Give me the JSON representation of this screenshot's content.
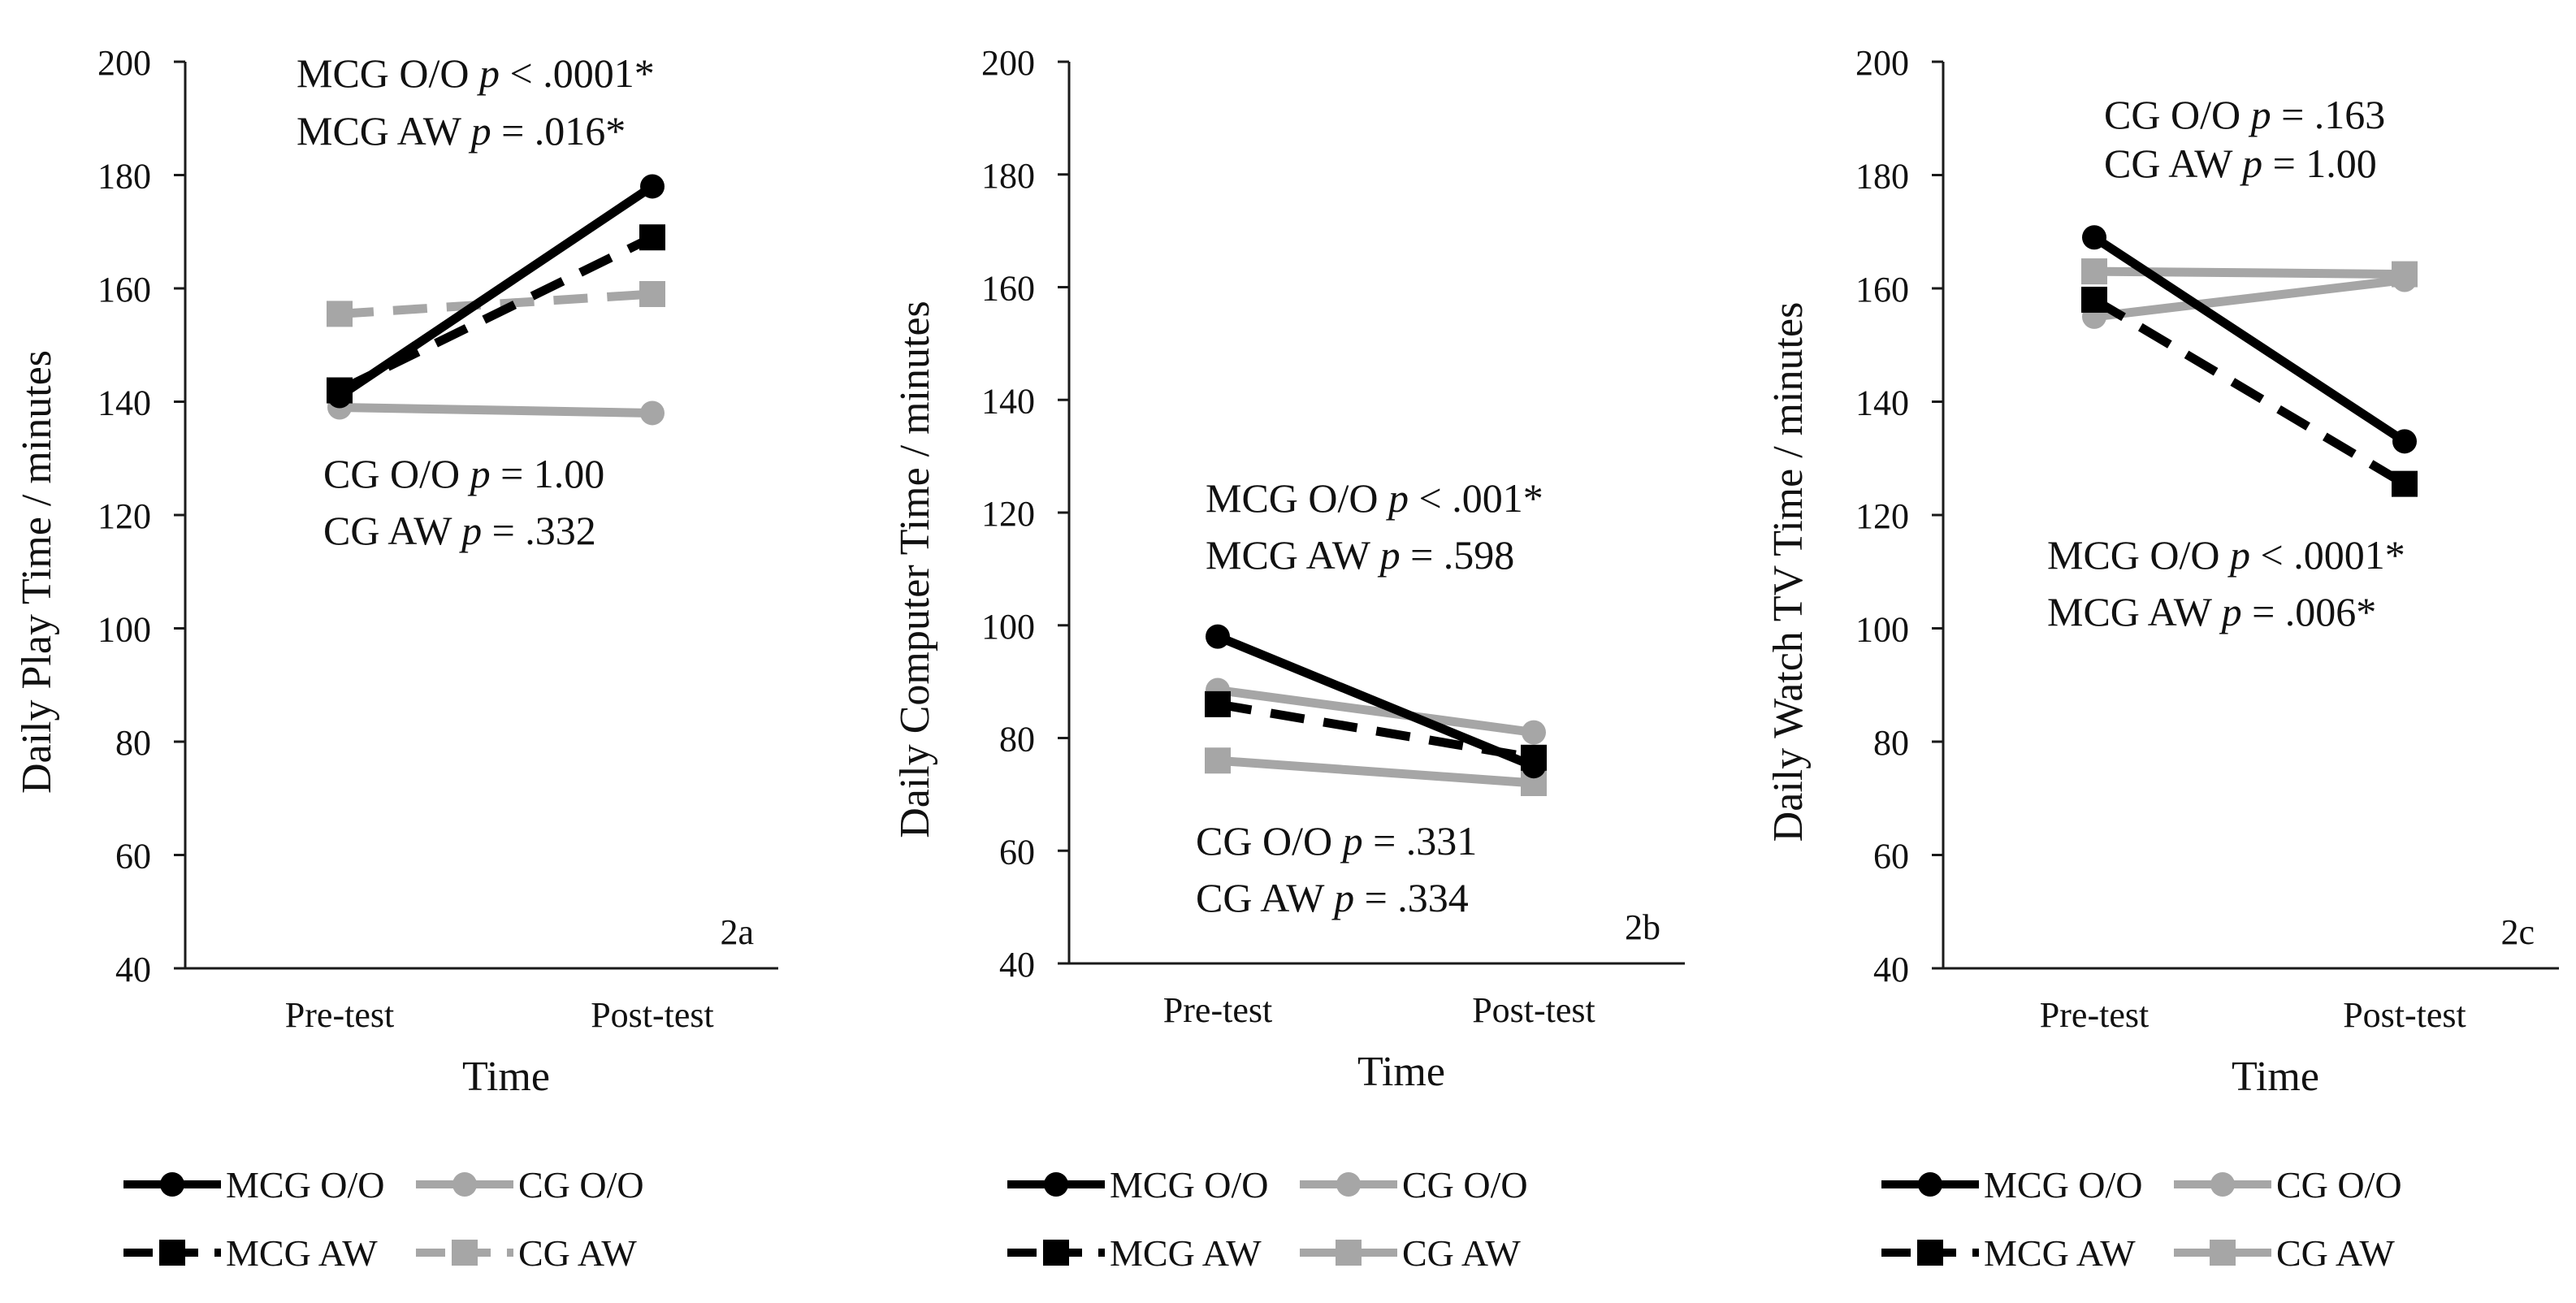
{
  "figure": {
    "colors": {
      "mcg": "#000000",
      "cg": "#a6a6a6",
      "axis": "#1a1a1a"
    }
  },
  "chart_data": [
    {
      "type": "line",
      "panel_label": "2a",
      "xlabel": "Time",
      "ylabel": "Daily Play Time / minutes",
      "categories": [
        "Pre-test",
        "Post-test"
      ],
      "ylim": [
        40,
        200
      ],
      "yticks": [
        "40",
        "60",
        "80",
        "100",
        "120",
        "140",
        "160",
        "180",
        "200"
      ],
      "series": [
        {
          "name": "MCG O/O",
          "values": [
            141,
            178
          ],
          "group": "mcg",
          "dash": "solid",
          "marker": "circle"
        },
        {
          "name": "CG O/O",
          "values": [
            139,
            138
          ],
          "group": "cg",
          "dash": "solid",
          "marker": "circle"
        },
        {
          "name": "MCG AW",
          "values": [
            142,
            169
          ],
          "group": "mcg",
          "dash": "dashed",
          "marker": "square"
        },
        {
          "name": "CG AW",
          "values": [
            155.5,
            159
          ],
          "group": "cg",
          "dash": "dashed",
          "marker": "square"
        }
      ],
      "annotations": [
        {
          "group": "MCG O/O",
          "p": "p",
          "value": "< .0001*"
        },
        {
          "group": "MCG AW",
          "p": "p",
          "value": "= .016*"
        },
        {
          "group": "CG O/O",
          "p": "p",
          "value": "= 1.00"
        },
        {
          "group": "CG AW",
          "p": "p",
          "value": "= .332"
        }
      ]
    },
    {
      "type": "line",
      "panel_label": "2b",
      "xlabel": "Time",
      "ylabel": "Daily Computer Time / minutes",
      "categories": [
        "Pre-test",
        "Post-test"
      ],
      "ylim": [
        40,
        200
      ],
      "yticks": [
        "40",
        "60",
        "80",
        "100",
        "120",
        "140",
        "160",
        "180",
        "200"
      ],
      "series": [
        {
          "name": "MCG O/O",
          "values": [
            98,
            75
          ],
          "group": "mcg",
          "dash": "solid",
          "marker": "circle"
        },
        {
          "name": "CG O/O",
          "values": [
            88.5,
            81
          ],
          "group": "cg",
          "dash": "solid",
          "marker": "circle"
        },
        {
          "name": "MCG AW",
          "values": [
            86,
            76.5
          ],
          "group": "mcg",
          "dash": "dashed",
          "marker": "square"
        },
        {
          "name": "CG AW",
          "values": [
            76,
            72
          ],
          "group": "cg",
          "dash": "solid",
          "marker": "square"
        }
      ],
      "annotations": [
        {
          "group": "MCG O/O",
          "p": "p",
          "value": "< .001*"
        },
        {
          "group": "MCG AW",
          "p": "p",
          "value": "= .598"
        },
        {
          "group": "CG O/O",
          "p": "p",
          "value": "= .331"
        },
        {
          "group": "CG AW",
          "p": "p",
          "value": "= .334"
        }
      ]
    },
    {
      "type": "line",
      "panel_label": "2c",
      "xlabel": "Time",
      "ylabel": "Daily Watch TV Time / minutes",
      "categories": [
        "Pre-test",
        "Post-test"
      ],
      "ylim": [
        40,
        200
      ],
      "yticks": [
        "40",
        "60",
        "80",
        "100",
        "120",
        "140",
        "160",
        "180",
        "200"
      ],
      "series": [
        {
          "name": "MCG O/O",
          "values": [
            169,
            133
          ],
          "group": "mcg",
          "dash": "solid",
          "marker": "circle"
        },
        {
          "name": "CG O/O",
          "values": [
            155,
            161.5
          ],
          "group": "cg",
          "dash": "solid",
          "marker": "circle"
        },
        {
          "name": "MCG AW",
          "values": [
            158,
            125.5
          ],
          "group": "mcg",
          "dash": "dashed",
          "marker": "square"
        },
        {
          "name": "CG AW",
          "values": [
            163,
            162.5
          ],
          "group": "cg",
          "dash": "solid",
          "marker": "square"
        }
      ],
      "annotations": [
        {
          "group": "CG O/O",
          "p": "p",
          "value": "= .163"
        },
        {
          "group": "CG AW",
          "p": "p",
          "value": "= 1.00"
        },
        {
          "group": "MCG O/O",
          "p": "p",
          "value": "< .0001*"
        },
        {
          "group": "MCG AW",
          "p": "p",
          "value": "= .006*"
        }
      ]
    }
  ]
}
